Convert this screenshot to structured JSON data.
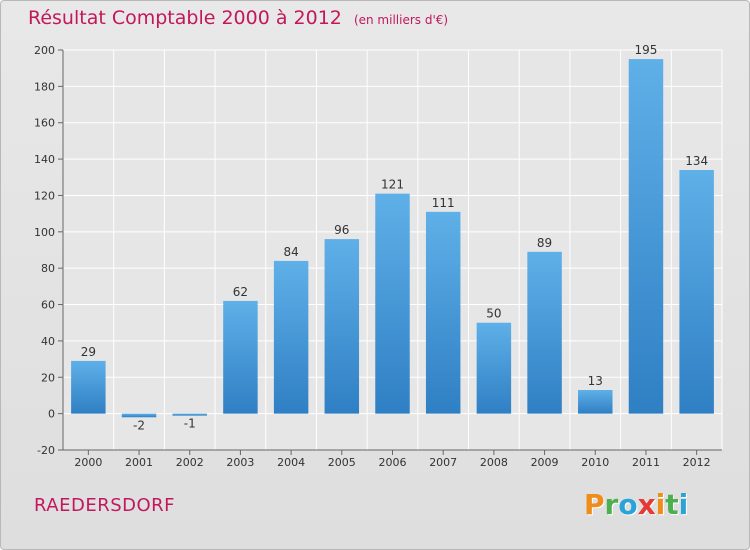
{
  "header": {
    "title": "Résultat Comptable 2000 à 2012",
    "subtitle": "(en milliers d'€)"
  },
  "footer": {
    "commune": "RAEDERSDORF",
    "brand_letters": [
      "P",
      "r",
      "o",
      "x",
      "i",
      "t",
      "i"
    ],
    "brand_colors": [
      "#f08c1a",
      "#4caf50",
      "#29a3d8",
      "#e53935",
      "#f08c1a",
      "#4caf50",
      "#29a3d8"
    ]
  },
  "colors": {
    "title": "#c2185b",
    "bar": "#3d8fd4",
    "bar_light": "#5fb0e8",
    "grid": "#ffffff",
    "axis_text": "#333333"
  },
  "chart_data": {
    "type": "bar",
    "title": "Résultat Comptable 2000 à 2012",
    "ylabel": "en milliers d'€",
    "xlabel": "",
    "categories": [
      "2000",
      "2001",
      "2002",
      "2003",
      "2004",
      "2005",
      "2006",
      "2007",
      "2008",
      "2009",
      "2010",
      "2011",
      "2012"
    ],
    "values": [
      29,
      -2,
      -1,
      62,
      84,
      96,
      121,
      111,
      50,
      89,
      13,
      195,
      134
    ],
    "labels": [
      "29",
      "-2",
      "-1",
      "62",
      "84",
      "96",
      "121",
      "111",
      "50",
      "89",
      "13",
      "195",
      "134"
    ],
    "ylim": [
      -20,
      200
    ],
    "yticks": [
      -20,
      0,
      20,
      40,
      60,
      80,
      100,
      120,
      140,
      160,
      180,
      200
    ],
    "grid": true,
    "legend": "none"
  }
}
